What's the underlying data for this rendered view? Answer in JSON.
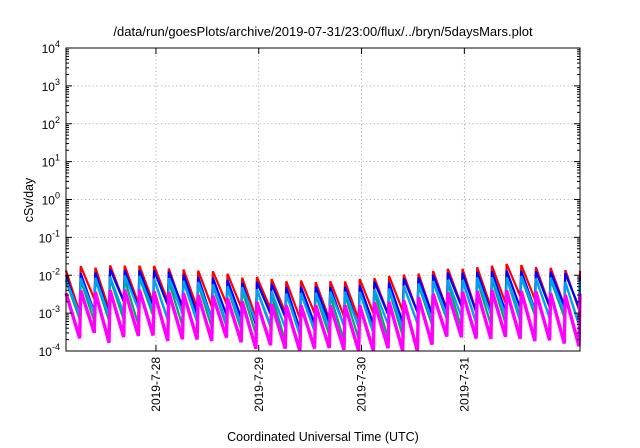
{
  "chart_data": {
    "type": "line",
    "title": "/data/run/goesPlots/archive/2019-07-31/23:00/flux/../bryn/5daysMars.plot",
    "xlabel": "Coordinated Universal Time (UTC)",
    "ylabel": "cSv/day",
    "y_scale": "log",
    "ylim": [
      0.0001,
      10000
    ],
    "y_ticks": [
      {
        "base": "10",
        "exp": "-4"
      },
      {
        "base": "10",
        "exp": "-3"
      },
      {
        "base": "10",
        "exp": "-2"
      },
      {
        "base": "10",
        "exp": "-1"
      },
      {
        "base": "10",
        "exp": "0"
      },
      {
        "base": "10",
        "exp": "1"
      },
      {
        "base": "10",
        "exp": "2"
      },
      {
        "base": "10",
        "exp": "3"
      },
      {
        "base": "10",
        "exp": "4"
      }
    ],
    "xlim": [
      "2019-07-27 03:00",
      "2019-08-01 03:00"
    ],
    "x_ticks": [
      "2019-7-28",
      "2019-7-29",
      "2019-7-30",
      "2019-7-31"
    ],
    "grid": true,
    "pattern": "sawtooth, about 7 cycles per day",
    "series": [
      {
        "color": "#ff0000",
        "peak": 0.011,
        "trough": 0.0012
      },
      {
        "color": "#0000ff",
        "peak": 0.0082,
        "trough": 0.0009
      },
      {
        "color": "#00aa66",
        "peak": 0.005,
        "trough": 0.0004
      },
      {
        "color": "#00a0ff",
        "peak": 0.0055,
        "trough": 0.00055
      },
      {
        "color": "#ff00ff",
        "peak": 0.0025,
        "trough": 0.00015
      }
    ]
  }
}
